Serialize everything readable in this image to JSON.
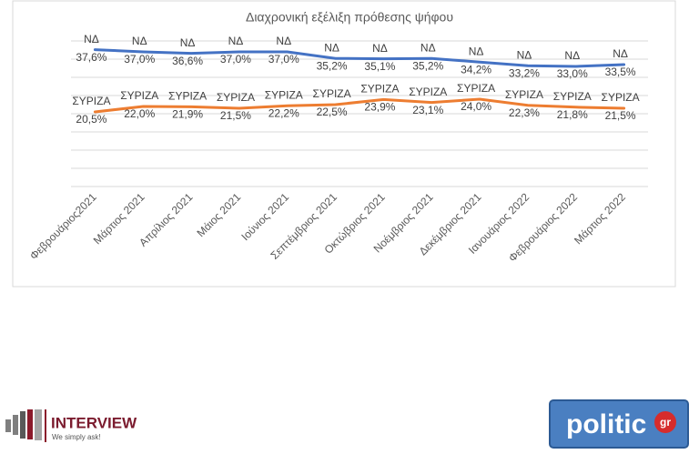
{
  "chart_data": {
    "type": "line",
    "title": "Διαχρονική εξέλιξη πρόθεσης ψήφου",
    "categories": [
      "Φεβρουάριος2021",
      "Μάρτιος 2021",
      "Απρίλιος 2021",
      "Μάιος 2021",
      "Ιούνιος 2021",
      "Σεπτέμβριος 2021",
      "Οκτώβριος 2021",
      "Νοέμβριος 2021",
      "Δεκέμβριος 2021",
      "Ιανουάριος 2022",
      "Φεβρουάριος 2022",
      "Μάρτιος 2022"
    ],
    "series": [
      {
        "name": "ΝΔ",
        "color": "#4472c4",
        "values": [
          37.6,
          37.0,
          36.6,
          37.0,
          37.0,
          35.2,
          35.1,
          35.2,
          34.2,
          33.2,
          33.0,
          33.5
        ],
        "value_labels": [
          "37,6%",
          "37,0%",
          "36,6%",
          "37,0%",
          "37,0%",
          "35,2%",
          "35,1%",
          "35,2%",
          "34,2%",
          "33,2%",
          "33,0%",
          "33,5%"
        ]
      },
      {
        "name": "ΣΥΡΙΖΑ",
        "color": "#ed7d31",
        "values": [
          20.5,
          22.0,
          21.9,
          21.5,
          22.2,
          22.5,
          23.9,
          23.1,
          24.0,
          22.3,
          21.8,
          21.5
        ],
        "value_labels": [
          "20,5%",
          "22,0%",
          "21,9%",
          "21,5%",
          "22,2%",
          "22,5%",
          "23,9%",
          "23,1%",
          "24,0%",
          "22,3%",
          "21,8%",
          "21,5%"
        ]
      }
    ],
    "ylim": [
      0,
      40
    ],
    "yticks": [
      0,
      5,
      10,
      15,
      20,
      25,
      30,
      35,
      40
    ],
    "ytick_labels": false,
    "grid": true
  },
  "logos": {
    "interview": "INTERVIEW",
    "interview_tagline": "We simply ask!",
    "politic": "politic",
    "politic_suffix": "gr"
  }
}
